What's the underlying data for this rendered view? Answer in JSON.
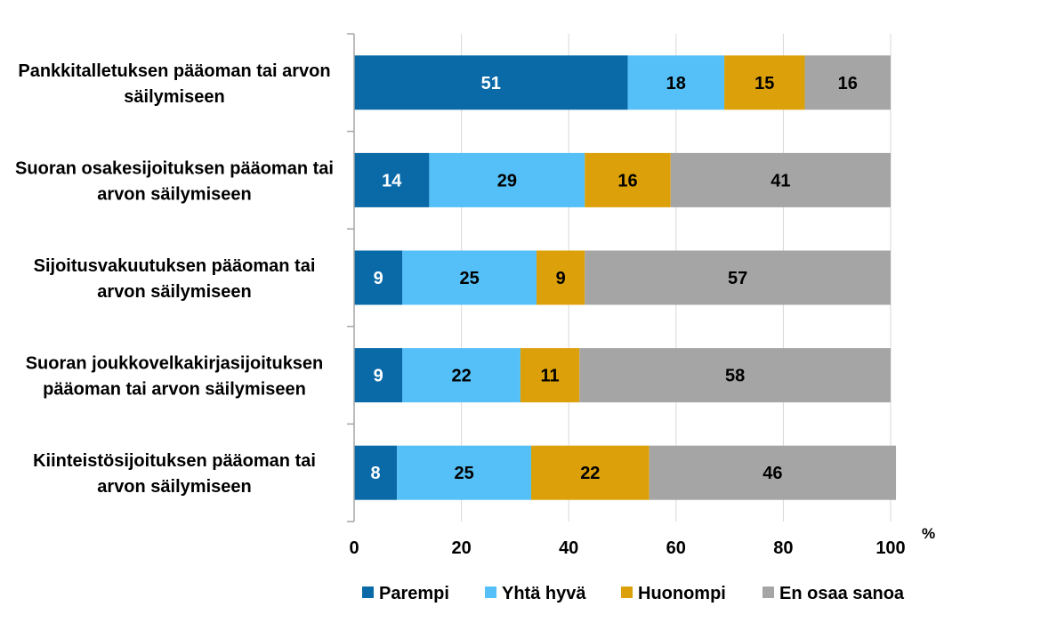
{
  "chart_data": {
    "type": "bar",
    "orientation": "horizontal",
    "stacked": true,
    "categories": [
      [
        "Pankkitalletuksen pääoman tai arvon",
        "säilymiseen"
      ],
      [
        "Suoran osakesijoituksen pääoman tai",
        "arvon säilymiseen"
      ],
      [
        "Sijoitusvakuutuksen pääoman tai",
        "arvon säilymiseen"
      ],
      [
        "Suoran joukkovelkakirjasijoituksen",
        "pääoman tai arvon säilymiseen"
      ],
      [
        "Kiinteistösijoituksen pääoman tai",
        "arvon säilymiseen"
      ]
    ],
    "series": [
      {
        "name": "Parempi",
        "color": "#0A6AA8",
        "label_color": "#ffffff",
        "values": [
          51,
          14,
          9,
          9,
          8
        ]
      },
      {
        "name": "Yhtä hyvä",
        "color": "#55C0F7",
        "label_color": "#000000",
        "values": [
          18,
          29,
          25,
          22,
          25
        ]
      },
      {
        "name": "Huonompi",
        "color": "#DCA00A",
        "label_color": "#000000",
        "values": [
          15,
          16,
          9,
          11,
          22
        ]
      },
      {
        "name": "En osaa sanoa",
        "color": "#A5A5A5",
        "label_color": "#000000",
        "values": [
          16,
          41,
          57,
          58,
          46
        ]
      }
    ],
    "xlim": [
      0,
      100
    ],
    "xticks": [
      "0",
      "20",
      "40",
      "60",
      "80",
      "100"
    ],
    "xunit": "%",
    "grid": true,
    "legend_position": "bottom"
  }
}
